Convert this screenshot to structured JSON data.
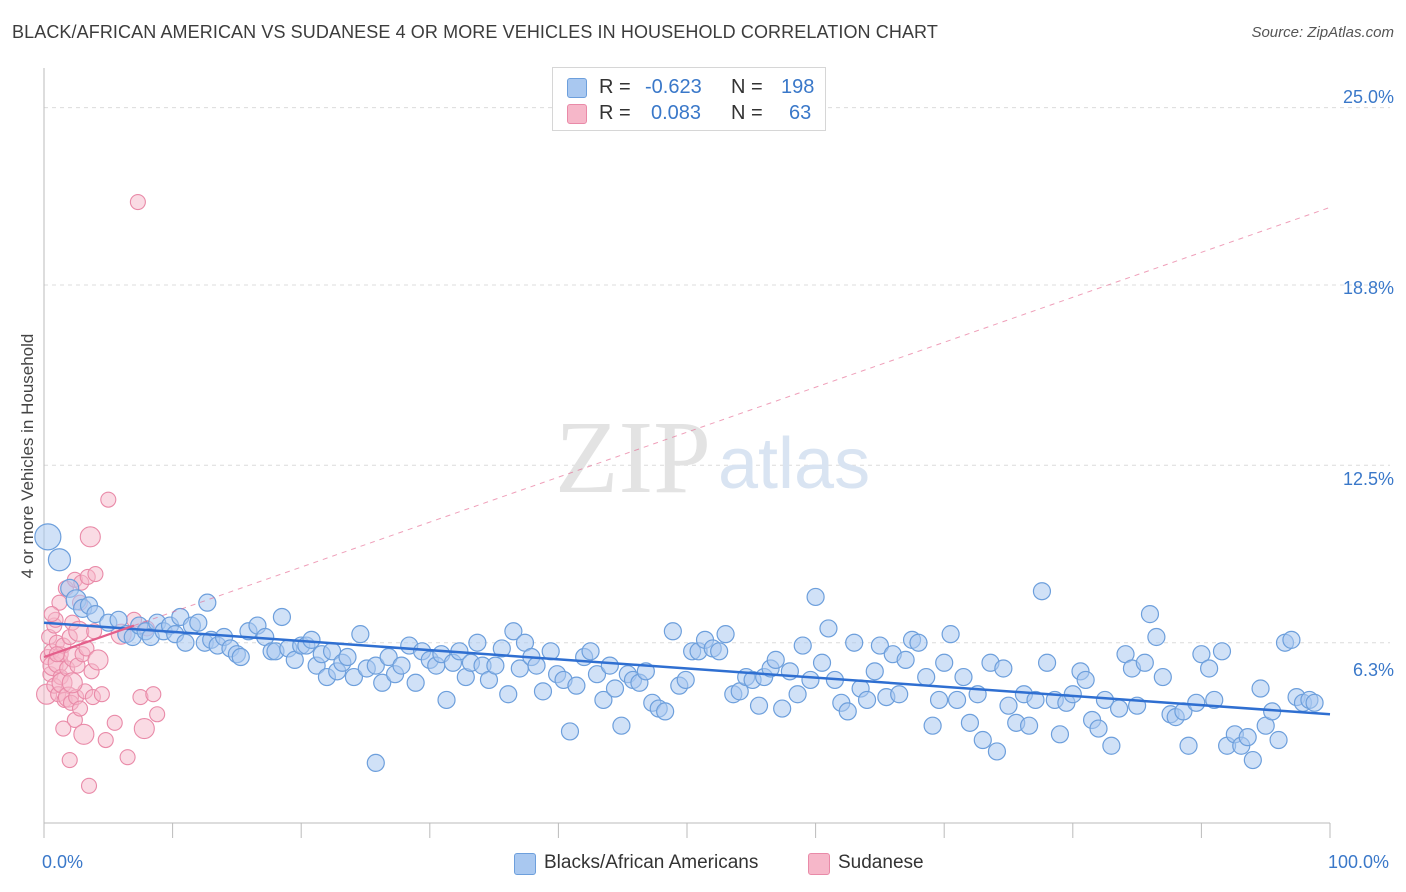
{
  "header": {
    "title": "BLACK/AFRICAN AMERICAN VS SUDANESE 4 OR MORE VEHICLES IN HOUSEHOLD CORRELATION CHART",
    "source": "Source: ZipAtlas.com"
  },
  "stats": {
    "row1": {
      "r_label": "R =",
      "r_value": "-0.623",
      "n_label": "N =",
      "n_value": "198"
    },
    "row2": {
      "r_label": "R =",
      "r_value": "0.083",
      "n_label": "N =",
      "n_value": "63"
    }
  },
  "legend": {
    "blue_label": "Blacks/African Americans",
    "pink_label": "Sudanese"
  },
  "watermark": {
    "zip": "ZIP",
    "atlas": "atlas"
  },
  "colors": {
    "blue_fill": "#a9c8f0",
    "blue_stroke": "#6d9fdc",
    "blue_line": "#2f6fd1",
    "pink_fill": "#f6b7c9",
    "pink_stroke": "#e98aa8",
    "pink_line": "#e45f8b",
    "tick_text": "#3a78c9"
  },
  "chart_data": {
    "type": "scatter",
    "title": "BLACK/AFRICAN AMERICAN VS SUDANESE 4 OR MORE VEHICLES IN HOUSEHOLD CORRELATION CHART",
    "xlabel": "",
    "ylabel": "4 or more Vehicles in Household",
    "x_tick_labels": [
      "0.0%",
      "100.0%"
    ],
    "y_tick_labels": [
      "6.3%",
      "12.5%",
      "18.8%",
      "25.0%"
    ],
    "y_ticks": [
      6.3,
      12.5,
      18.8,
      25.0
    ],
    "xlim": [
      0,
      100
    ],
    "ylim": [
      0,
      26
    ],
    "grid": "horizontal dashed",
    "legend_position": "bottom-center",
    "series": [
      {
        "name": "Blacks/African Americans",
        "color": "#a9c8f0",
        "trend": {
          "x": [
            0,
            100
          ],
          "y": [
            7.0,
            3.8
          ]
        },
        "points": [
          [
            0.3,
            10.0
          ],
          [
            1.2,
            9.2
          ],
          [
            2.0,
            8.2
          ],
          [
            2.5,
            7.8
          ],
          [
            3.0,
            7.5
          ],
          [
            3.5,
            7.6
          ],
          [
            4.0,
            7.3
          ],
          [
            5.0,
            7.0
          ],
          [
            5.8,
            7.1
          ],
          [
            6.4,
            6.6
          ],
          [
            6.9,
            6.5
          ],
          [
            7.4,
            6.9
          ],
          [
            7.9,
            6.7
          ],
          [
            8.3,
            6.5
          ],
          [
            8.8,
            7.0
          ],
          [
            9.3,
            6.7
          ],
          [
            9.8,
            6.9
          ],
          [
            10.2,
            6.6
          ],
          [
            10.6,
            7.2
          ],
          [
            11.0,
            6.3
          ],
          [
            11.5,
            6.9
          ],
          [
            12.0,
            7.0
          ],
          [
            12.5,
            6.3
          ],
          [
            12.7,
            7.7
          ],
          [
            13.0,
            6.4
          ],
          [
            13.5,
            6.2
          ],
          [
            14.0,
            6.5
          ],
          [
            14.5,
            6.1
          ],
          [
            15.0,
            5.9
          ],
          [
            15.3,
            5.8
          ],
          [
            15.9,
            6.7
          ],
          [
            16.6,
            6.9
          ],
          [
            17.2,
            6.5
          ],
          [
            17.7,
            6.0
          ],
          [
            18.0,
            6.0
          ],
          [
            18.5,
            7.2
          ],
          [
            19.0,
            6.1
          ],
          [
            19.5,
            5.7
          ],
          [
            20.0,
            6.2
          ],
          [
            20.4,
            6.2
          ],
          [
            20.8,
            6.4
          ],
          [
            21.2,
            5.5
          ],
          [
            21.6,
            5.9
          ],
          [
            22.0,
            5.1
          ],
          [
            22.4,
            6.0
          ],
          [
            22.8,
            5.3
          ],
          [
            23.2,
            5.6
          ],
          [
            23.6,
            5.8
          ],
          [
            24.1,
            5.1
          ],
          [
            24.6,
            6.6
          ],
          [
            25.1,
            5.4
          ],
          [
            25.8,
            5.5
          ],
          [
            26.3,
            4.9
          ],
          [
            26.8,
            5.8
          ],
          [
            27.3,
            5.2
          ],
          [
            27.8,
            5.5
          ],
          [
            28.4,
            6.2
          ],
          [
            28.9,
            4.9
          ],
          [
            29.4,
            6.0
          ],
          [
            30.0,
            5.7
          ],
          [
            30.5,
            5.5
          ],
          [
            30.9,
            5.9
          ],
          [
            31.3,
            4.3
          ],
          [
            31.8,
            5.6
          ],
          [
            32.3,
            6.0
          ],
          [
            32.8,
            5.1
          ],
          [
            33.2,
            5.6
          ],
          [
            33.7,
            6.3
          ],
          [
            34.1,
            5.5
          ],
          [
            34.6,
            5.0
          ],
          [
            35.1,
            5.5
          ],
          [
            35.6,
            6.1
          ],
          [
            36.1,
            4.5
          ],
          [
            36.5,
            6.7
          ],
          [
            37.0,
            5.4
          ],
          [
            37.4,
            6.3
          ],
          [
            37.9,
            5.8
          ],
          [
            38.3,
            5.5
          ],
          [
            38.8,
            4.6
          ],
          [
            39.4,
            6.0
          ],
          [
            39.9,
            5.2
          ],
          [
            40.4,
            5.0
          ],
          [
            40.9,
            3.2
          ],
          [
            41.4,
            4.8
          ],
          [
            42.0,
            5.8
          ],
          [
            42.5,
            6.0
          ],
          [
            43.0,
            5.2
          ],
          [
            43.5,
            4.3
          ],
          [
            44.0,
            5.5
          ],
          [
            44.4,
            4.7
          ],
          [
            44.9,
            3.4
          ],
          [
            45.4,
            5.2
          ],
          [
            45.8,
            5.0
          ],
          [
            46.3,
            4.9
          ],
          [
            46.8,
            5.3
          ],
          [
            47.3,
            4.2
          ],
          [
            47.8,
            4.0
          ],
          [
            48.3,
            3.9
          ],
          [
            48.9,
            6.7
          ],
          [
            49.4,
            4.8
          ],
          [
            49.9,
            5.0
          ],
          [
            50.4,
            6.0
          ],
          [
            50.9,
            6.0
          ],
          [
            51.4,
            6.4
          ],
          [
            52.0,
            6.1
          ],
          [
            52.5,
            6.0
          ],
          [
            53.0,
            6.6
          ],
          [
            53.6,
            4.5
          ],
          [
            54.1,
            4.6
          ],
          [
            54.6,
            5.1
          ],
          [
            55.1,
            5.0
          ],
          [
            55.6,
            4.1
          ],
          [
            56.0,
            5.1
          ],
          [
            56.5,
            5.4
          ],
          [
            56.9,
            5.7
          ],
          [
            57.4,
            4.0
          ],
          [
            58.0,
            5.3
          ],
          [
            58.6,
            4.5
          ],
          [
            59.0,
            6.2
          ],
          [
            59.6,
            5.0
          ],
          [
            60.0,
            7.9
          ],
          [
            60.5,
            5.6
          ],
          [
            61.0,
            6.8
          ],
          [
            61.5,
            5.0
          ],
          [
            62.0,
            4.2
          ],
          [
            62.5,
            3.9
          ],
          [
            63.0,
            6.3
          ],
          [
            63.5,
            4.7
          ],
          [
            64.0,
            4.3
          ],
          [
            64.6,
            5.3
          ],
          [
            65.0,
            6.2
          ],
          [
            65.5,
            4.4
          ],
          [
            66.0,
            5.9
          ],
          [
            66.5,
            4.5
          ],
          [
            67.0,
            5.7
          ],
          [
            67.5,
            6.4
          ],
          [
            68.0,
            6.3
          ],
          [
            68.6,
            5.1
          ],
          [
            69.1,
            3.4
          ],
          [
            69.6,
            4.3
          ],
          [
            70.0,
            5.6
          ],
          [
            70.5,
            6.6
          ],
          [
            71.0,
            4.3
          ],
          [
            71.5,
            5.1
          ],
          [
            72.0,
            3.5
          ],
          [
            72.6,
            4.5
          ],
          [
            73.0,
            2.9
          ],
          [
            73.6,
            5.6
          ],
          [
            74.1,
            2.5
          ],
          [
            74.6,
            5.4
          ],
          [
            75.0,
            4.1
          ],
          [
            75.6,
            3.5
          ],
          [
            76.2,
            4.5
          ],
          [
            76.6,
            3.4
          ],
          [
            77.1,
            4.3
          ],
          [
            77.6,
            8.1
          ],
          [
            78.0,
            5.6
          ],
          [
            78.6,
            4.3
          ],
          [
            79.0,
            3.1
          ],
          [
            79.5,
            4.2
          ],
          [
            80.0,
            4.5
          ],
          [
            80.6,
            5.3
          ],
          [
            81.0,
            5.0
          ],
          [
            81.5,
            3.6
          ],
          [
            82.0,
            3.3
          ],
          [
            82.5,
            4.3
          ],
          [
            83.0,
            2.7
          ],
          [
            83.6,
            4.0
          ],
          [
            84.1,
            5.9
          ],
          [
            84.6,
            5.4
          ],
          [
            85.0,
            4.1
          ],
          [
            85.6,
            5.6
          ],
          [
            86.0,
            7.3
          ],
          [
            86.5,
            6.5
          ],
          [
            87.0,
            5.1
          ],
          [
            87.6,
            3.8
          ],
          [
            88.0,
            3.7
          ],
          [
            88.6,
            3.9
          ],
          [
            89.0,
            2.7
          ],
          [
            89.6,
            4.2
          ],
          [
            90.0,
            5.9
          ],
          [
            90.6,
            5.4
          ],
          [
            91.0,
            4.3
          ],
          [
            91.6,
            6.0
          ],
          [
            92.0,
            2.7
          ],
          [
            92.6,
            3.1
          ],
          [
            93.1,
            2.7
          ],
          [
            93.6,
            3.0
          ],
          [
            94.0,
            2.2
          ],
          [
            94.6,
            4.7
          ],
          [
            95.0,
            3.4
          ],
          [
            95.5,
            3.9
          ],
          [
            96.0,
            2.9
          ],
          [
            96.5,
            6.3
          ],
          [
            97.0,
            6.4
          ],
          [
            97.4,
            4.4
          ],
          [
            97.9,
            4.2
          ],
          [
            98.4,
            4.3
          ],
          [
            98.8,
            4.2
          ],
          [
            25.8,
            2.1
          ]
        ]
      },
      {
        "name": "Sudanese",
        "color": "#f6b7c9",
        "trend": {
          "x": [
            0,
            7
          ],
          "y": [
            5.8,
            6.9
          ]
        },
        "points": [
          [
            0.2,
            4.5
          ],
          [
            0.3,
            5.8
          ],
          [
            0.4,
            6.5
          ],
          [
            0.5,
            5.2
          ],
          [
            0.6,
            6.0
          ],
          [
            0.7,
            5.5
          ],
          [
            0.8,
            6.9
          ],
          [
            0.8,
            4.8
          ],
          [
            0.9,
            7.1
          ],
          [
            1.0,
            6.3
          ],
          [
            1.1,
            5.6
          ],
          [
            1.1,
            4.5
          ],
          [
            1.2,
            7.7
          ],
          [
            1.3,
            5.9
          ],
          [
            1.3,
            5.1
          ],
          [
            1.4,
            4.9
          ],
          [
            1.5,
            6.2
          ],
          [
            1.6,
            4.3
          ],
          [
            1.7,
            8.2
          ],
          [
            1.8,
            5.4
          ],
          [
            1.9,
            4.4
          ],
          [
            2.0,
            2.2
          ],
          [
            2.0,
            6.5
          ],
          [
            2.1,
            4.2
          ],
          [
            2.2,
            7.0
          ],
          [
            2.3,
            5.8
          ],
          [
            2.4,
            3.6
          ],
          [
            2.4,
            8.5
          ],
          [
            2.5,
            4.4
          ],
          [
            2.6,
            5.5
          ],
          [
            2.7,
            6.7
          ],
          [
            2.8,
            4.0
          ],
          [
            2.8,
            7.7
          ],
          [
            2.9,
            8.4
          ],
          [
            3.0,
            5.9
          ],
          [
            3.1,
            3.1
          ],
          [
            3.2,
            4.6
          ],
          [
            3.3,
            6.1
          ],
          [
            3.4,
            8.6
          ],
          [
            3.5,
            1.3
          ],
          [
            3.6,
            10.0
          ],
          [
            3.7,
            5.3
          ],
          [
            3.8,
            4.4
          ],
          [
            3.9,
            6.7
          ],
          [
            4.0,
            8.7
          ],
          [
            4.2,
            5.7
          ],
          [
            4.5,
            4.5
          ],
          [
            4.8,
            2.9
          ],
          [
            5.0,
            11.3
          ],
          [
            5.5,
            3.5
          ],
          [
            6.0,
            6.6
          ],
          [
            6.5,
            2.3
          ],
          [
            7.0,
            7.1
          ],
          [
            7.3,
            21.7
          ],
          [
            7.5,
            4.4
          ],
          [
            7.8,
            3.3
          ],
          [
            8.0,
            6.8
          ],
          [
            8.5,
            4.5
          ],
          [
            8.8,
            3.8
          ],
          [
            1.5,
            3.3
          ],
          [
            2.2,
            4.9
          ],
          [
            1.0,
            5.9
          ],
          [
            0.6,
            7.3
          ]
        ]
      }
    ]
  }
}
